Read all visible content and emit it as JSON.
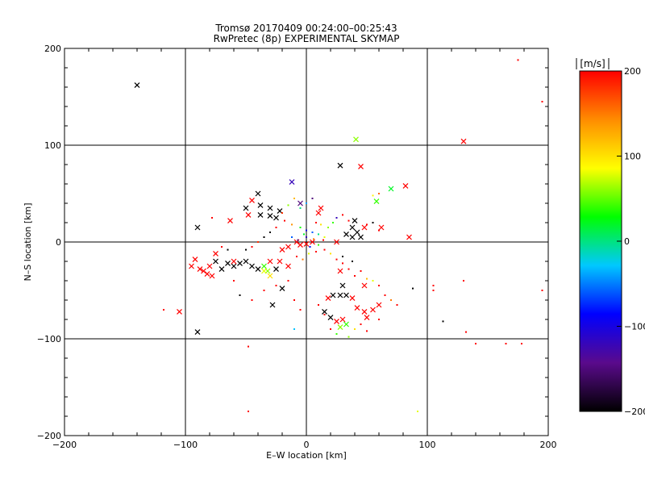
{
  "chart_data": {
    "type": "scatter",
    "title": "Tromsø 20170409 00:24:00–00:25:43",
    "subtitle": "RwPretec (8p) EXPERIMENTAL SKYMAP",
    "xlabel": "E–W location [km]",
    "ylabel": "N–S location [km]",
    "xlim": [
      -200,
      200
    ],
    "ylim": [
      -200,
      200
    ],
    "xticks": [
      "−200",
      "−100",
      "0",
      "100",
      "200"
    ],
    "yticks": [
      "−200",
      "−100",
      "0",
      "100",
      "200"
    ],
    "grid": true,
    "colorbar": {
      "label": "[m/s]",
      "range": [
        -200,
        200
      ],
      "ticks": [
        "200",
        "100",
        "0",
        "−100",
        "−200"
      ],
      "colors": [
        "#000000",
        "#5a0a8c",
        "#0000ff",
        "#00c8ff",
        "#00ff00",
        "#ffff00",
        "#ff8c00",
        "#ff0000"
      ]
    },
    "series": [
      {
        "marker": "x",
        "points": [
          [
            -140,
            162,
            -200
          ],
          [
            130,
            104,
            200
          ],
          [
            41,
            106,
            60
          ],
          [
            28,
            79,
            -200
          ],
          [
            45,
            78,
            200
          ],
          [
            82,
            58,
            200
          ],
          [
            70,
            55,
            20
          ],
          [
            58,
            42,
            40
          ],
          [
            -12,
            62,
            -120
          ],
          [
            -40,
            50,
            -200
          ],
          [
            -45,
            43,
            200
          ],
          [
            -38,
            38,
            -200
          ],
          [
            -30,
            35,
            -200
          ],
          [
            -22,
            32,
            -200
          ],
          [
            -38,
            28,
            -200
          ],
          [
            -30,
            27,
            -200
          ],
          [
            -50,
            35,
            -200
          ],
          [
            -48,
            28,
            200
          ],
          [
            -25,
            25,
            -200
          ],
          [
            -63,
            22,
            200
          ],
          [
            -90,
            15,
            -200
          ],
          [
            -5,
            40,
            -150
          ],
          [
            10,
            30,
            200
          ],
          [
            12,
            35,
            200
          ],
          [
            40,
            22,
            -200
          ],
          [
            38,
            15,
            -200
          ],
          [
            42,
            10,
            -200
          ],
          [
            45,
            5,
            -200
          ],
          [
            38,
            5,
            -200
          ],
          [
            33,
            8,
            -200
          ],
          [
            48,
            15,
            200
          ],
          [
            62,
            15,
            200
          ],
          [
            -50,
            -20,
            -200
          ],
          [
            -55,
            -22,
            -200
          ],
          [
            -45,
            -25,
            -200
          ],
          [
            -40,
            -28,
            -200
          ],
          [
            -35,
            -25,
            40
          ],
          [
            -32,
            -30,
            60
          ],
          [
            -25,
            -28,
            -200
          ],
          [
            -60,
            -25,
            -200
          ],
          [
            -65,
            -22,
            -200
          ],
          [
            -70,
            -28,
            -200
          ],
          [
            -75,
            -20,
            -200
          ],
          [
            -80,
            -25,
            200
          ],
          [
            -85,
            -30,
            200
          ],
          [
            -82,
            -33,
            200
          ],
          [
            -88,
            -28,
            200
          ],
          [
            -78,
            -35,
            200
          ],
          [
            -95,
            -25,
            200
          ],
          [
            -92,
            -18,
            200
          ],
          [
            -75,
            -12,
            200
          ],
          [
            -60,
            -20,
            200
          ],
          [
            -30,
            -20,
            200
          ],
          [
            -22,
            -20,
            200
          ],
          [
            -30,
            -35,
            100
          ],
          [
            -35,
            -30,
            80
          ],
          [
            -15,
            -25,
            200
          ],
          [
            -20,
            -48,
            -200
          ],
          [
            -28,
            -65,
            -200
          ],
          [
            -105,
            -72,
            200
          ],
          [
            -90,
            -93,
            -200
          ],
          [
            15,
            -72,
            -200
          ],
          [
            22,
            -55,
            -200
          ],
          [
            28,
            -55,
            -200
          ],
          [
            33,
            -55,
            -200
          ],
          [
            30,
            -45,
            -200
          ],
          [
            18,
            -58,
            200
          ],
          [
            38,
            -58,
            200
          ],
          [
            42,
            -68,
            200
          ],
          [
            48,
            -72,
            200
          ],
          [
            55,
            -70,
            200
          ],
          [
            60,
            -65,
            200
          ],
          [
            50,
            -78,
            200
          ],
          [
            30,
            -80,
            200
          ],
          [
            25,
            -82,
            200
          ],
          [
            28,
            -88,
            60
          ],
          [
            33,
            -85,
            40
          ],
          [
            20,
            -78,
            -200
          ],
          [
            -15,
            -5,
            200
          ],
          [
            -8,
            0,
            200
          ],
          [
            -5,
            -3,
            200
          ],
          [
            0,
            -2,
            200
          ],
          [
            5,
            0,
            200
          ],
          [
            -20,
            -8,
            200
          ],
          [
            28,
            -30,
            200
          ],
          [
            48,
            -45,
            200
          ],
          [
            85,
            5,
            200
          ],
          [
            25,
            0,
            200
          ]
        ]
      },
      {
        "marker": "dot",
        "points": [
          [
            175,
            188,
            200
          ],
          [
            195,
            145,
            200
          ],
          [
            -140,
            162,
            -200
          ],
          [
            60,
            50,
            160
          ],
          [
            55,
            48,
            90
          ],
          [
            -5,
            35,
            0
          ],
          [
            0,
            40,
            -40
          ],
          [
            5,
            45,
            -150
          ],
          [
            -10,
            45,
            120
          ],
          [
            -15,
            38,
            60
          ],
          [
            -20,
            30,
            180
          ],
          [
            -18,
            22,
            200
          ],
          [
            -12,
            18,
            140
          ],
          [
            -5,
            15,
            30
          ],
          [
            0,
            12,
            -100
          ],
          [
            5,
            10,
            -60
          ],
          [
            10,
            8,
            0
          ],
          [
            15,
            5,
            80
          ],
          [
            -25,
            15,
            200
          ],
          [
            -30,
            10,
            -200
          ],
          [
            -35,
            5,
            -200
          ],
          [
            -40,
            0,
            180
          ],
          [
            -45,
            -5,
            200
          ],
          [
            -50,
            -8,
            -200
          ],
          [
            8,
            20,
            200
          ],
          [
            12,
            18,
            100
          ],
          [
            18,
            15,
            60
          ],
          [
            22,
            20,
            40
          ],
          [
            25,
            25,
            -120
          ],
          [
            30,
            28,
            200
          ],
          [
            35,
            22,
            200
          ],
          [
            50,
            18,
            200
          ],
          [
            55,
            20,
            -200
          ],
          [
            60,
            12,
            200
          ],
          [
            -8,
            -15,
            200
          ],
          [
            -3,
            -18,
            150
          ],
          [
            2,
            -12,
            80
          ],
          [
            8,
            -10,
            200
          ],
          [
            15,
            -8,
            200
          ],
          [
            20,
            -12,
            100
          ],
          [
            25,
            -18,
            200
          ],
          [
            30,
            -22,
            200
          ],
          [
            35,
            -28,
            200
          ],
          [
            40,
            -35,
            200
          ],
          [
            45,
            -30,
            200
          ],
          [
            50,
            -38,
            120
          ],
          [
            55,
            -40,
            80
          ],
          [
            60,
            -45,
            200
          ],
          [
            65,
            -55,
            200
          ],
          [
            70,
            -60,
            150
          ],
          [
            75,
            -65,
            200
          ],
          [
            -55,
            -55,
            -200
          ],
          [
            -45,
            -60,
            200
          ],
          [
            -35,
            -50,
            200
          ],
          [
            -25,
            -45,
            200
          ],
          [
            -15,
            -40,
            200
          ],
          [
            -10,
            -60,
            200
          ],
          [
            -5,
            -70,
            200
          ],
          [
            10,
            -65,
            200
          ],
          [
            15,
            -75,
            200
          ],
          [
            20,
            -90,
            200
          ],
          [
            25,
            -95,
            40
          ],
          [
            35,
            -98,
            60
          ],
          [
            40,
            -90,
            100
          ],
          [
            45,
            -85,
            200
          ],
          [
            50,
            -92,
            200
          ],
          [
            60,
            -80,
            200
          ],
          [
            105,
            -45,
            200
          ],
          [
            105,
            -50,
            200
          ],
          [
            88,
            -48,
            -200
          ],
          [
            113,
            -82,
            -200
          ],
          [
            130,
            -40,
            200
          ],
          [
            132,
            -93,
            200
          ],
          [
            140,
            -105,
            200
          ],
          [
            165,
            -105,
            200
          ],
          [
            178,
            -105,
            200
          ],
          [
            195,
            -50,
            200
          ],
          [
            -118,
            -70,
            200
          ],
          [
            -78,
            25,
            200
          ],
          [
            -48,
            -108,
            200
          ],
          [
            -48,
            -175,
            200
          ],
          [
            92,
            -175,
            80
          ],
          [
            -10,
            -90,
            -30
          ],
          [
            -60,
            -40,
            200
          ],
          [
            -70,
            -5,
            200
          ],
          [
            -65,
            -8,
            -200
          ],
          [
            30,
            -15,
            -200
          ],
          [
            38,
            -20,
            -200
          ],
          [
            0,
            5,
            -120
          ],
          [
            3,
            -5,
            -80
          ],
          [
            -2,
            8,
            20
          ],
          [
            6,
            3,
            150
          ],
          [
            -7,
            2,
            -150
          ],
          [
            10,
            -3,
            40
          ],
          [
            -12,
            5,
            -60
          ],
          [
            14,
            2,
            200
          ]
        ]
      }
    ]
  }
}
